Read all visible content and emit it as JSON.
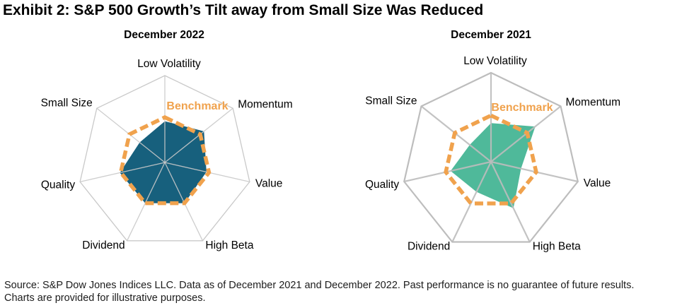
{
  "header": {
    "title": "Exhibit 2: S&P 500 Growth’s Tilt away from Small Size Was Reduced"
  },
  "footer": {
    "line1": "Source: S&P Dow Jones Indices LLC. Data as of December 2021 and December 2022. Past performance is no guarantee of future results.",
    "line2": "Charts are provided for illustrative purposes."
  },
  "colors": {
    "benchmark_orange": "#F0A24D",
    "growth_2022_teal": "#17607D",
    "growth_2021_green": "#4FB99A",
    "grid_gray_left": "#C9C9C9",
    "grid_gray_right": "#BDBDBD",
    "text_black": "#000000"
  },
  "chart_data": [
    {
      "type": "radar",
      "title": "December 2022",
      "axes": [
        "Low Volatility",
        "Momentum",
        "Value",
        "High Beta",
        "Dividend",
        "Quality",
        "Small Size"
      ],
      "axis_order": "clockwise from top",
      "grid": "single outer heptagon ring with 7 spokes, no numeric tick labels",
      "value_scale": "unitless factor exposure, estimated as fraction of axis length (0 = center, 1 = outer ring)",
      "grid_color": "#C9C9C9",
      "series": [
        {
          "name": "S&P 500 Growth",
          "style": "filled",
          "color": "#17607D",
          "values": [
            0.475,
            0.575,
            0.49,
            0.52,
            0.52,
            0.53,
            0.37
          ]
        },
        {
          "name": "Benchmark",
          "style": "dashed",
          "color": "#F0A24D",
          "values": [
            0.52,
            0.52,
            0.52,
            0.52,
            0.52,
            0.52,
            0.52
          ]
        }
      ],
      "legend": {
        "label": "Benchmark",
        "position": "inside, upper-right of radar"
      }
    },
    {
      "type": "radar",
      "title": "December 2021",
      "axes": [
        "Low Volatility",
        "Momentum",
        "Value",
        "High Beta",
        "Dividend",
        "Quality",
        "Small Size"
      ],
      "axis_order": "clockwise from top",
      "grid": "single outer heptagon ring with 7 spokes, no numeric tick labels",
      "value_scale": "unitless factor exposure, estimated as fraction of axis length (0 = center, 1 = outer ring)",
      "grid_color": "#BDBDBD",
      "series": [
        {
          "name": "S&P 500 Growth",
          "style": "filled",
          "color": "#4FB99A",
          "values": [
            0.435,
            0.635,
            0.345,
            0.58,
            0.375,
            0.465,
            0.305
          ]
        },
        {
          "name": "Benchmark",
          "style": "dashed",
          "color": "#F0A24D",
          "values": [
            0.52,
            0.52,
            0.52,
            0.52,
            0.52,
            0.52,
            0.52
          ]
        }
      ],
      "legend": {
        "label": "Benchmark",
        "position": "inside, upper-right of radar"
      }
    }
  ]
}
